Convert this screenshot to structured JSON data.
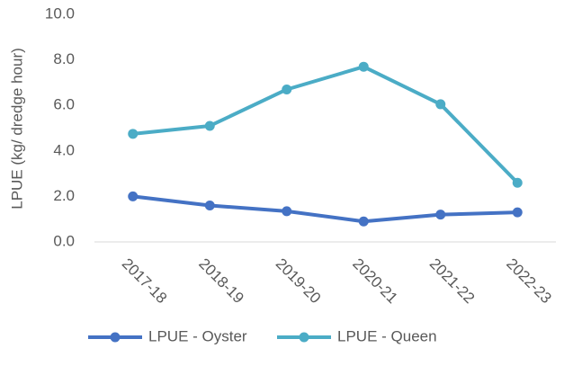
{
  "chart_data": {
    "type": "line",
    "y_label": "LPUE (kg/ dredge hour)",
    "categories": [
      "2017-18",
      "2018-19",
      "2019-20",
      "2020-21",
      "2021-22",
      "2022-23"
    ],
    "series": [
      {
        "name": "LPUE - Oyster",
        "color": "#4472c4",
        "values": [
          2.0,
          1.6,
          1.35,
          0.9,
          1.2,
          1.3
        ]
      },
      {
        "name": "LPUE - Queen",
        "color": "#4bacc6",
        "values": [
          4.75,
          5.1,
          6.7,
          7.7,
          6.05,
          2.6
        ]
      }
    ],
    "ylim": [
      0,
      10
    ],
    "yticks": [
      {
        "value": 0,
        "label": "0.0"
      },
      {
        "value": 2,
        "label": "2.0"
      },
      {
        "value": 4,
        "label": "4.0"
      },
      {
        "value": 6,
        "label": "6.0"
      },
      {
        "value": 8,
        "label": "8.0"
      },
      {
        "value": 10,
        "label": "10.0"
      }
    ],
    "grid": false,
    "legend": "bottom"
  }
}
